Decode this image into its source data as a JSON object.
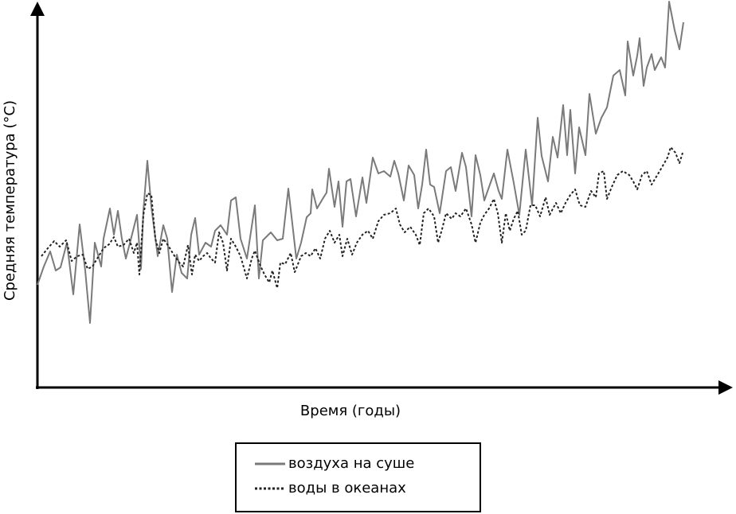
{
  "chart_data": {
    "type": "line",
    "x_label": "Время (годы)",
    "y_label": "Средняя температура (°C)",
    "xlim": [
      0,
      863
    ],
    "ylim": [
      0,
      487
    ],
    "series": [
      {
        "name": "воздуха на суше",
        "color": "#7a7a7a",
        "line_style": "solid",
        "x": [
          0,
          8,
          16,
          23,
          29,
          37,
          45,
          53,
          60,
          66,
          72,
          80,
          83,
          91,
          96,
          101,
          106,
          111,
          118,
          125,
          130,
          133,
          138,
          143,
          151,
          158,
          163,
          169,
          175,
          181,
          188,
          193,
          198,
          203,
          211,
          218,
          223,
          230,
          238,
          243,
          249,
          255,
          263,
          273,
          278,
          283,
          293,
          301,
          308,
          315,
          325,
          331,
          338,
          343,
          345,
          351,
          358,
          363,
          366,
          373,
          378,
          383,
          388,
          393,
          400,
          408,
          413,
          421,
          428,
          435,
          443,
          448,
          453,
          460,
          466,
          473,
          478,
          483,
          488,
          493,
          498,
          505,
          513,
          519,
          525,
          533,
          538,
          545,
          550,
          556,
          561,
          568,
          573,
          579,
          583,
          590,
          598,
          605,
          613,
          621,
          628,
          633,
          641,
          647,
          653,
          660,
          665,
          669,
          675,
          680,
          688,
          693,
          701,
          708,
          715,
          723,
          731,
          738,
          741,
          748,
          753,
          756,
          761,
          765,
          771,
          775,
          783,
          788,
          793,
          800,
          806,
          811
        ],
        "values": [
          129,
          152,
          171,
          147,
          151,
          182,
          117,
          205,
          147,
          81,
          182,
          152,
          187,
          225,
          192,
          222,
          187,
          162,
          189,
          217,
          149,
          222,
          285,
          227,
          165,
          204,
          187,
          120,
          167,
          144,
          137,
          192,
          213,
          167,
          182,
          177,
          197,
          204,
          192,
          235,
          239,
          187,
          162,
          229,
          137,
          185,
          195,
          185,
          187,
          250,
          162,
          182,
          214,
          219,
          249,
          225,
          237,
          245,
          275,
          227,
          259,
          202,
          259,
          262,
          215,
          264,
          232,
          289,
          269,
          272,
          265,
          285,
          269,
          235,
          279,
          267,
          225,
          255,
          299,
          255,
          252,
          219,
          272,
          277,
          247,
          295,
          277,
          215,
          292,
          267,
          235,
          255,
          269,
          247,
          237,
          299,
          257,
          217,
          299,
          229,
          339,
          291,
          259,
          315,
          289,
          355,
          292,
          349,
          269,
          327,
          292,
          369,
          319,
          339,
          352,
          392,
          399,
          367,
          435,
          392,
          417,
          439,
          379,
          402,
          419,
          399,
          415,
          402,
          485,
          449,
          425,
          459
        ]
      },
      {
        "name": "воды в океанах",
        "color": "#222222",
        "line_style": "dotted",
        "x": [
          5,
          13,
          21,
          28,
          36,
          43,
          50,
          57,
          63,
          69,
          75,
          83,
          90,
          96,
          101,
          108,
          115,
          121,
          125,
          128,
          133,
          138,
          143,
          148,
          153,
          158,
          165,
          171,
          178,
          183,
          189,
          194,
          198,
          203,
          208,
          213,
          218,
          223,
          228,
          233,
          238,
          243,
          249,
          255,
          263,
          269,
          273,
          279,
          285,
          291,
          295,
          301,
          305,
          311,
          318,
          323,
          331,
          337,
          343,
          349,
          355,
          361,
          367,
          373,
          379,
          383,
          389,
          395,
          401,
          408,
          415,
          421,
          428,
          435,
          443,
          450,
          455,
          461,
          468,
          475,
          480,
          485,
          491,
          498,
          503,
          508,
          513,
          520,
          525,
          531,
          538,
          545,
          550,
          556,
          561,
          567,
          573,
          578,
          583,
          588,
          593,
          598,
          603,
          608,
          613,
          619,
          625,
          631,
          638,
          643,
          651,
          657,
          663,
          669,
          675,
          681,
          688,
          695,
          701,
          705,
          711,
          715,
          721,
          728,
          735,
          743,
          748,
          753,
          759,
          765,
          771,
          777,
          783,
          791,
          795,
          801,
          806,
          810
        ],
        "values": [
          165,
          175,
          184,
          177,
          185,
          159,
          165,
          167,
          149,
          152,
          162,
          175,
          180,
          189,
          177,
          179,
          187,
          169,
          182,
          142,
          217,
          244,
          242,
          187,
          169,
          187,
          177,
          167,
          157,
          152,
          179,
          142,
          167,
          159,
          165,
          169,
          162,
          157,
          195,
          182,
          147,
          187,
          177,
          165,
          137,
          162,
          172,
          155,
          142,
          132,
          147,
          125,
          157,
          155,
          169,
          145,
          165,
          169,
          165,
          175,
          162,
          187,
          197,
          182,
          192,
          165,
          187,
          167,
          182,
          192,
          197,
          187,
          209,
          217,
          219,
          225,
          205,
          195,
          202,
          192,
          179,
          219,
          225,
          215,
          182,
          199,
          219,
          212,
          219,
          215,
          225,
          205,
          182,
          207,
          217,
          225,
          237,
          219,
          182,
          219,
          197,
          212,
          222,
          192,
          197,
          229,
          229,
          215,
          239,
          217,
          232,
          219,
          232,
          242,
          249,
          229,
          227,
          247,
          239,
          269,
          272,
          237,
          252,
          267,
          272,
          267,
          259,
          249,
          267,
          272,
          255,
          265,
          275,
          289,
          302,
          295,
          282,
          295
        ]
      }
    ]
  }
}
